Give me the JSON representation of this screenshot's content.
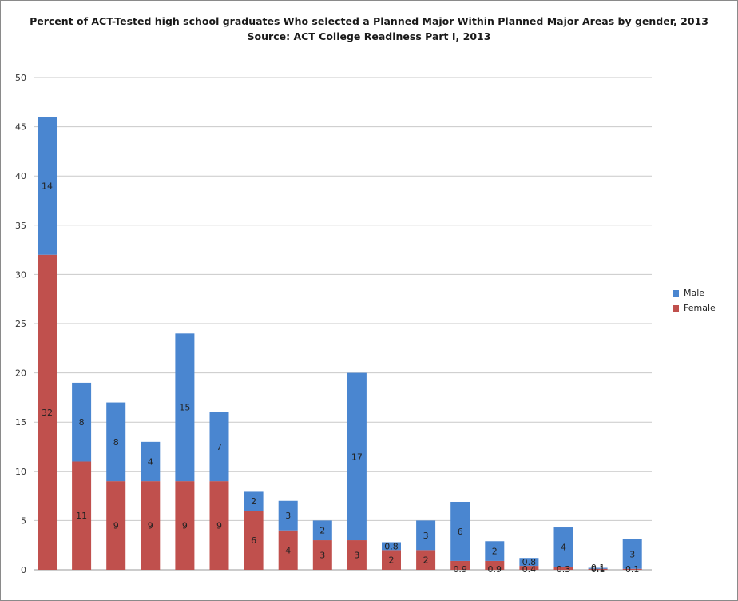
{
  "title_line1": "Percent of ACT-Tested high school graduates Who selected a Planned Major Within Planned Major Areas by gender, 2013",
  "title_line2": "Source: ACT College Readiness Part I, 2013",
  "legend": {
    "male": "Male",
    "female": "Female"
  },
  "colors": {
    "male": "#4a86d0",
    "female": "#c0504d",
    "grid": "#c9c9c9"
  },
  "chart_data": {
    "type": "bar",
    "stacked": true,
    "ylim": [
      0,
      50
    ],
    "yticks": [
      0,
      5,
      10,
      15,
      20,
      25,
      30,
      35,
      40,
      45,
      50
    ],
    "grid": true,
    "legend_position": "right",
    "categories": [
      "",
      "",
      "",
      "",
      "",
      "",
      "",
      "",
      "",
      "",
      "",
      "",
      "",
      "",
      "",
      "",
      "",
      ""
    ],
    "series": [
      {
        "name": "Female",
        "values": [
          32,
          11,
          9,
          9,
          9,
          9,
          6,
          4,
          3,
          3,
          2,
          2,
          0.9,
          0.9,
          0.4,
          0.3,
          0.1,
          0.1
        ],
        "labels": [
          "32",
          "11",
          "9",
          "9",
          "9",
          "9",
          "6",
          "4",
          "3",
          "3",
          "2",
          "2",
          "0.9",
          "0.9",
          "0.4",
          "0.3",
          "0.1",
          "0.1"
        ]
      },
      {
        "name": "Male",
        "values": [
          14,
          8,
          8,
          4,
          15,
          7,
          2,
          3,
          2,
          17,
          0.8,
          3,
          6,
          2,
          0.8,
          4,
          0.1,
          3
        ],
        "labels": [
          "14",
          "8",
          "8",
          "4",
          "15",
          "7",
          "2",
          "3",
          "2",
          "17",
          "0.8",
          "3",
          "6",
          "2",
          "0.8",
          "4",
          "0.1",
          "3"
        ]
      }
    ]
  }
}
